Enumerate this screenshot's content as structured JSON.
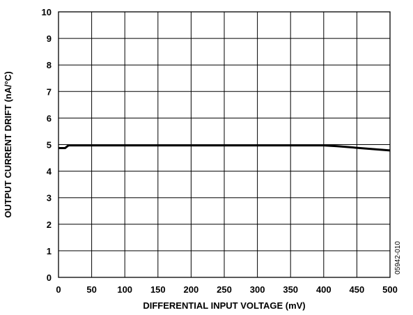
{
  "chart_data": {
    "type": "line",
    "xlabel": "DIFFERENTIAL INPUT VOLTAGE (mV)",
    "ylabel": "OUTPUT CURRENT DRIFT (nA/°C)",
    "xlim": [
      0,
      500
    ],
    "ylim": [
      0,
      10
    ],
    "xticks": [
      0,
      50,
      100,
      150,
      200,
      250,
      300,
      350,
      400,
      450,
      500
    ],
    "yticks": [
      0,
      1,
      2,
      3,
      4,
      5,
      6,
      7,
      8,
      9,
      10
    ],
    "grid": true,
    "series": [
      {
        "x": [
          0,
          10,
          15,
          50,
          100,
          200,
          300,
          400,
          420,
          450,
          480,
          500
        ],
        "y": [
          4.87,
          4.87,
          4.97,
          4.97,
          4.97,
          4.97,
          4.97,
          4.97,
          4.94,
          4.88,
          4.82,
          4.78
        ]
      }
    ]
  },
  "figure_code": "05942-010"
}
